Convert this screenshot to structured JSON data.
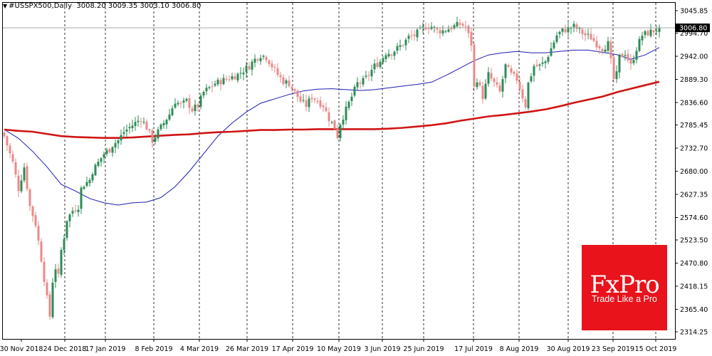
{
  "header": {
    "marker": "▼",
    "symbol": "#USSPX500,Daily",
    "ohlc": "3008.20 3009.35 3003.10 3006.80"
  },
  "price_label": "3006.80",
  "logo": {
    "name": "FxPro",
    "tagline": "Trade Like a Pro"
  },
  "chart_data": {
    "type": "candlestick",
    "title": "#USSPX500,Daily",
    "current_price": 3006.8,
    "ylim": [
      2314.25,
      3058.0
    ],
    "y_ticks": [
      3045.85,
      2994.7,
      2942.0,
      2889.3,
      2836.6,
      2785.45,
      2732.7,
      2680.0,
      2627.35,
      2574.6,
      2523.5,
      2470.8,
      2418.15,
      2365.4,
      2314.25
    ],
    "x_ticks": [
      "30 Nov 2018",
      "24 Dec 2018",
      "17 Jan 2019",
      "8 Feb 2019",
      "4 Mar 2019",
      "26 Mar 2019",
      "17 Apr 2019",
      "10 May 2019",
      "3 Jun 2019",
      "25 Jun 2019",
      "17 Jul 2019",
      "8 Aug 2019",
      "30 Aug 2019",
      "23 Sep 2019",
      "15 Oct 2019"
    ],
    "grid": "vertical dashed at x ticks",
    "series": [
      {
        "type": "candlestick",
        "bull_color": "#2e8b57",
        "bear_color": "#e88a8a",
        "anchor_closes": [
          [
            0,
            2760
          ],
          [
            3,
            2700
          ],
          [
            5,
            2640
          ],
          [
            7,
            2690
          ],
          [
            9,
            2600
          ],
          [
            11,
            2560
          ],
          [
            13,
            2480
          ],
          [
            15,
            2390
          ],
          [
            16,
            2350
          ],
          [
            17,
            2430
          ],
          [
            18,
            2460
          ],
          [
            19,
            2440
          ],
          [
            20,
            2500
          ],
          [
            21,
            2530
          ],
          [
            22,
            2570
          ],
          [
            24,
            2590
          ],
          [
            26,
            2600
          ],
          [
            27,
            2640
          ],
          [
            28,
            2650
          ],
          [
            30,
            2660
          ],
          [
            31,
            2680
          ],
          [
            33,
            2700
          ],
          [
            35,
            2720
          ],
          [
            37,
            2730
          ],
          [
            38,
            2740
          ],
          [
            40,
            2750
          ],
          [
            42,
            2770
          ],
          [
            44,
            2780
          ],
          [
            46,
            2790
          ],
          [
            48,
            2800
          ],
          [
            50,
            2780
          ],
          [
            52,
            2750
          ],
          [
            54,
            2770
          ],
          [
            56,
            2790
          ],
          [
            58,
            2810
          ],
          [
            60,
            2840
          ],
          [
            62,
            2830
          ],
          [
            64,
            2840
          ],
          [
            66,
            2820
          ],
          [
            68,
            2830
          ],
          [
            70,
            2860
          ],
          [
            72,
            2870
          ],
          [
            74,
            2880
          ],
          [
            76,
            2885
          ],
          [
            78,
            2890
          ],
          [
            80,
            2895
          ],
          [
            82,
            2900
          ],
          [
            84,
            2910
          ],
          [
            86,
            2920
          ],
          [
            88,
            2935
          ],
          [
            90,
            2945
          ],
          [
            92,
            2940
          ],
          [
            94,
            2920
          ],
          [
            96,
            2900
          ],
          [
            98,
            2885
          ],
          [
            100,
            2880
          ],
          [
            102,
            2860
          ],
          [
            104,
            2840
          ],
          [
            106,
            2830
          ],
          [
            108,
            2850
          ],
          [
            110,
            2840
          ],
          [
            112,
            2830
          ],
          [
            114,
            2800
          ],
          [
            116,
            2780
          ],
          [
            117,
            2760
          ],
          [
            118,
            2790
          ],
          [
            120,
            2820
          ],
          [
            122,
            2850
          ],
          [
            124,
            2880
          ],
          [
            126,
            2885
          ],
          [
            128,
            2900
          ],
          [
            130,
            2920
          ],
          [
            132,
            2930
          ],
          [
            134,
            2950
          ],
          [
            136,
            2950
          ],
          [
            138,
            2960
          ],
          [
            140,
            2970
          ],
          [
            142,
            2985
          ],
          [
            144,
            2990
          ],
          [
            146,
            3000
          ],
          [
            148,
            3010
          ],
          [
            150,
            3010
          ],
          [
            152,
            3000
          ],
          [
            154,
            3000
          ],
          [
            156,
            3005
          ],
          [
            158,
            3010
          ],
          [
            160,
            3015
          ],
          [
            162,
            3010
          ],
          [
            163,
            2990
          ],
          [
            164,
            2970
          ],
          [
            165,
            2870
          ],
          [
            166,
            2890
          ],
          [
            168,
            2850
          ],
          [
            170,
            2900
          ],
          [
            172,
            2880
          ],
          [
            174,
            2860
          ],
          [
            176,
            2920
          ],
          [
            178,
            2900
          ],
          [
            180,
            2890
          ],
          [
            182,
            2850
          ],
          [
            183,
            2830
          ],
          [
            184,
            2880
          ],
          [
            186,
            2920
          ],
          [
            188,
            2920
          ],
          [
            190,
            2930
          ],
          [
            192,
            2960
          ],
          [
            194,
            2990
          ],
          [
            196,
            3000
          ],
          [
            198,
            3005
          ],
          [
            200,
            3010
          ],
          [
            202,
            3000
          ],
          [
            204,
            2990
          ],
          [
            206,
            2985
          ],
          [
            208,
            2970
          ],
          [
            210,
            2960
          ],
          [
            212,
            2970
          ],
          [
            214,
            2890
          ],
          [
            215,
            2900
          ],
          [
            216,
            2940
          ],
          [
            218,
            2950
          ],
          [
            220,
            2920
          ],
          [
            222,
            2960
          ],
          [
            224,
            2990
          ],
          [
            226,
            2995
          ],
          [
            228,
            3000
          ],
          [
            230,
            3006.8
          ]
        ]
      },
      {
        "name": "",
        "type": "line",
        "color": "#1c1cb4",
        "points": [
          [
            0,
            2775
          ],
          [
            5,
            2755
          ],
          [
            10,
            2725
          ],
          [
            15,
            2690
          ],
          [
            20,
            2650
          ],
          [
            25,
            2635
          ],
          [
            30,
            2618
          ],
          [
            35,
            2608
          ],
          [
            40,
            2603
          ],
          [
            45,
            2608
          ],
          [
            50,
            2610
          ],
          [
            55,
            2620
          ],
          [
            60,
            2645
          ],
          [
            65,
            2680
          ],
          [
            70,
            2720
          ],
          [
            75,
            2760
          ],
          [
            80,
            2790
          ],
          [
            85,
            2815
          ],
          [
            90,
            2835
          ],
          [
            95,
            2845
          ],
          [
            100,
            2855
          ],
          [
            105,
            2863
          ],
          [
            110,
            2867
          ],
          [
            115,
            2868
          ],
          [
            120,
            2866
          ],
          [
            125,
            2864
          ],
          [
            130,
            2866
          ],
          [
            135,
            2870
          ],
          [
            140,
            2874
          ],
          [
            145,
            2878
          ],
          [
            150,
            2883
          ],
          [
            155,
            2898
          ],
          [
            160,
            2915
          ],
          [
            165,
            2932
          ],
          [
            170,
            2945
          ],
          [
            175,
            2950
          ],
          [
            180,
            2953
          ],
          [
            185,
            2950
          ],
          [
            190,
            2950
          ],
          [
            195,
            2953
          ],
          [
            200,
            2956
          ],
          [
            205,
            2956
          ],
          [
            210,
            2951
          ],
          [
            215,
            2946
          ],
          [
            220,
            2935
          ],
          [
            225,
            2945
          ],
          [
            230,
            2962
          ]
        ]
      },
      {
        "name": "",
        "type": "line",
        "color": "#d01414",
        "points": [
          [
            0,
            2775
          ],
          [
            5,
            2772
          ],
          [
            10,
            2770
          ],
          [
            15,
            2765
          ],
          [
            20,
            2760
          ],
          [
            25,
            2758
          ],
          [
            30,
            2757
          ],
          [
            35,
            2756
          ],
          [
            40,
            2756
          ],
          [
            45,
            2757
          ],
          [
            50,
            2759
          ],
          [
            55,
            2761
          ],
          [
            60,
            2763
          ],
          [
            65,
            2764
          ],
          [
            70,
            2767
          ],
          [
            75,
            2769
          ],
          [
            80,
            2770
          ],
          [
            85,
            2772
          ],
          [
            90,
            2774
          ],
          [
            95,
            2774
          ],
          [
            100,
            2775
          ],
          [
            105,
            2775
          ],
          [
            110,
            2776
          ],
          [
            115,
            2776
          ],
          [
            120,
            2776
          ],
          [
            125,
            2776
          ],
          [
            130,
            2776
          ],
          [
            135,
            2777
          ],
          [
            140,
            2779
          ],
          [
            145,
            2782
          ],
          [
            150,
            2785
          ],
          [
            155,
            2789
          ],
          [
            160,
            2795
          ],
          [
            165,
            2800
          ],
          [
            170,
            2805
          ],
          [
            175,
            2808
          ],
          [
            180,
            2812
          ],
          [
            185,
            2816
          ],
          [
            190,
            2821
          ],
          [
            195,
            2828
          ],
          [
            200,
            2836
          ],
          [
            205,
            2843
          ],
          [
            210,
            2850
          ],
          [
            215,
            2860
          ],
          [
            220,
            2868
          ],
          [
            225,
            2876
          ],
          [
            230,
            2884
          ]
        ]
      }
    ]
  }
}
